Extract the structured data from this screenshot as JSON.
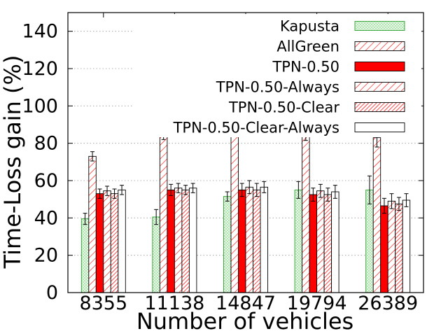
{
  "chart_data": {
    "type": "bar",
    "xlabel": "Number of vehicles",
    "ylabel": "Time-Loss gain (%)",
    "ylim": [
      0,
      150
    ],
    "yticks": [
      0,
      20,
      40,
      60,
      80,
      100,
      120,
      140
    ],
    "grid": true,
    "legend_position": "top-right",
    "categories": [
      "8355",
      "11138",
      "14847",
      "19794",
      "26389"
    ],
    "series": [
      {
        "name": "Kapusta",
        "pattern": "light-green-dots",
        "color": "#2ca02c",
        "values": [
          39.5,
          40.5,
          51.5,
          55,
          55
        ],
        "errors": [
          3,
          4,
          2.5,
          4.5,
          7.5
        ]
      },
      {
        "name": "AllGreen",
        "pattern": "red-hatch",
        "color": "#ff0000",
        "values": [
          73,
          85,
          88,
          85.5,
          83
        ],
        "errors": [
          2.5,
          3,
          3,
          4,
          5
        ]
      },
      {
        "name": "TPN-0.50",
        "pattern": "solid",
        "color": "#ff0000",
        "values": [
          53,
          55,
          55,
          52.5,
          46.5
        ],
        "errors": [
          2.5,
          3,
          3.5,
          3.5,
          4
        ]
      },
      {
        "name": "TPN-0.50-Always",
        "pattern": "red-hatch",
        "color": "#ff0000",
        "values": [
          54.5,
          56,
          56.5,
          54.5,
          49
        ],
        "errors": [
          2.5,
          2.5,
          3.5,
          3.5,
          4
        ]
      },
      {
        "name": "TPN-0.50-Clear",
        "pattern": "red-dense-hatch",
        "color": "#ff0000",
        "values": [
          53,
          55,
          55,
          52.5,
          47.5
        ],
        "errors": [
          2.5,
          2.5,
          3.5,
          3.5,
          3.5
        ]
      },
      {
        "name": "TPN-0.50-Clear-Always",
        "pattern": "empty",
        "color": "#000000",
        "values": [
          55,
          56,
          56.5,
          54,
          49.5
        ],
        "errors": [
          2.5,
          2.5,
          3,
          3.5,
          3.5
        ]
      }
    ]
  }
}
